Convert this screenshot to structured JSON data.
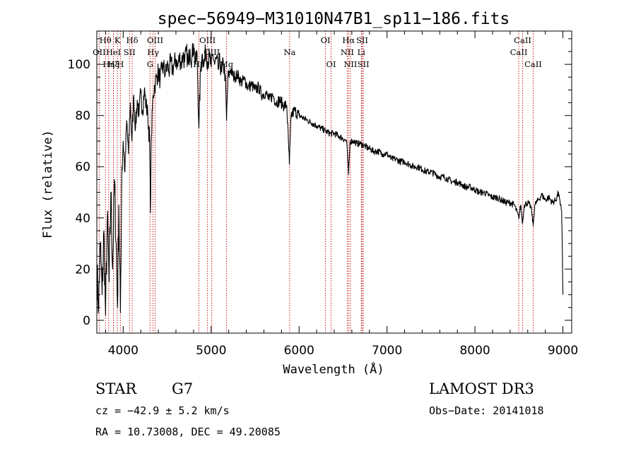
{
  "chart_data": {
    "type": "line",
    "title": "spec−56949−M31010N47B1_sp11−186.fits",
    "xlabel": "Wavelength (Å)",
    "ylabel": "Flux (relative)",
    "xlim": [
      3700,
      9100
    ],
    "ylim": [
      -5,
      113
    ],
    "xticks": [
      4000,
      5000,
      6000,
      7000,
      8000,
      9000
    ],
    "yticks": [
      0,
      20,
      40,
      60,
      80,
      100
    ],
    "x_minor_step": 200,
    "y_minor_step": 5,
    "spectrum_anchors": [
      [
        3700,
        20
      ],
      [
        3720,
        5
      ],
      [
        3740,
        30
      ],
      [
        3760,
        10
      ],
      [
        3780,
        35
      ],
      [
        3800,
        2
      ],
      [
        3820,
        40
      ],
      [
        3840,
        15
      ],
      [
        3860,
        50
      ],
      [
        3880,
        20
      ],
      [
        3900,
        55
      ],
      [
        3920,
        30
      ],
      [
        3935,
        5
      ],
      [
        3950,
        45
      ],
      [
        3968,
        3
      ],
      [
        3985,
        60
      ],
      [
        4000,
        70
      ],
      [
        4020,
        58
      ],
      [
        4040,
        78
      ],
      [
        4060,
        65
      ],
      [
        4080,
        85
      ],
      [
        4100,
        70
      ],
      [
        4120,
        88
      ],
      [
        4140,
        75
      ],
      [
        4160,
        86
      ],
      [
        4180,
        80
      ],
      [
        4200,
        89
      ],
      [
        4220,
        82
      ],
      [
        4240,
        90
      ],
      [
        4260,
        84
      ],
      [
        4280,
        80
      ],
      [
        4300,
        70
      ],
      [
        4310,
        42
      ],
      [
        4320,
        72
      ],
      [
        4340,
        88
      ],
      [
        4360,
        92
      ],
      [
        4380,
        95
      ],
      [
        4400,
        97
      ],
      [
        4420,
        94
      ],
      [
        4440,
        98
      ],
      [
        4460,
        99
      ],
      [
        4480,
        96
      ],
      [
        4500,
        100
      ],
      [
        4520,
        97
      ],
      [
        4540,
        101
      ],
      [
        4560,
        98
      ],
      [
        4580,
        100
      ],
      [
        4600,
        102
      ],
      [
        4620,
        99
      ],
      [
        4640,
        103
      ],
      [
        4660,
        100
      ],
      [
        4680,
        104
      ],
      [
        4700,
        101
      ],
      [
        4720,
        105
      ],
      [
        4740,
        100
      ],
      [
        4760,
        106
      ],
      [
        4780,
        102
      ],
      [
        4800,
        108
      ],
      [
        4820,
        100
      ],
      [
        4840,
        104
      ],
      [
        4861,
        75
      ],
      [
        4880,
        98
      ],
      [
        4900,
        104
      ],
      [
        4920,
        100
      ],
      [
        4940,
        106
      ],
      [
        4960,
        101
      ],
      [
        4980,
        103
      ],
      [
        5000,
        99
      ],
      [
        5020,
        104
      ],
      [
        5040,
        100
      ],
      [
        5060,
        102
      ],
      [
        5080,
        98
      ],
      [
        5100,
        101
      ],
      [
        5120,
        97
      ],
      [
        5140,
        100
      ],
      [
        5160,
        96
      ],
      [
        5175,
        78
      ],
      [
        5190,
        94
      ],
      [
        5220,
        98
      ],
      [
        5260,
        95
      ],
      [
        5300,
        96
      ],
      [
        5340,
        93
      ],
      [
        5380,
        94
      ],
      [
        5420,
        91
      ],
      [
        5460,
        92
      ],
      [
        5500,
        90
      ],
      [
        5540,
        91
      ],
      [
        5580,
        88
      ],
      [
        5620,
        89
      ],
      [
        5660,
        86
      ],
      [
        5700,
        88
      ],
      [
        5740,
        85
      ],
      [
        5780,
        86
      ],
      [
        5820,
        84
      ],
      [
        5860,
        84
      ],
      [
        5890,
        61
      ],
      [
        5910,
        80
      ],
      [
        5950,
        82
      ],
      [
        6000,
        80
      ],
      [
        6050,
        79
      ],
      [
        6100,
        78
      ],
      [
        6150,
        77
      ],
      [
        6200,
        76
      ],
      [
        6250,
        75
      ],
      [
        6300,
        74
      ],
      [
        6350,
        73
      ],
      [
        6400,
        73
      ],
      [
        6450,
        72
      ],
      [
        6500,
        71
      ],
      [
        6540,
        70
      ],
      [
        6563,
        57
      ],
      [
        6580,
        70
      ],
      [
        6620,
        70
      ],
      [
        6660,
        69
      ],
      [
        6700,
        69
      ],
      [
        6750,
        68
      ],
      [
        6800,
        67
      ],
      [
        6850,
        66
      ],
      [
        6900,
        66
      ],
      [
        6950,
        65
      ],
      [
        7000,
        65
      ],
      [
        7050,
        63
      ],
      [
        7100,
        63
      ],
      [
        7150,
        62
      ],
      [
        7200,
        62
      ],
      [
        7250,
        61
      ],
      [
        7300,
        60
      ],
      [
        7350,
        60
      ],
      [
        7400,
        59
      ],
      [
        7450,
        58
      ],
      [
        7500,
        58
      ],
      [
        7550,
        57
      ],
      [
        7600,
        56
      ],
      [
        7650,
        56
      ],
      [
        7700,
        55
      ],
      [
        7750,
        54
      ],
      [
        7800,
        54
      ],
      [
        7850,
        53
      ],
      [
        7900,
        52
      ],
      [
        7950,
        52
      ],
      [
        8000,
        51
      ],
      [
        8050,
        50
      ],
      [
        8100,
        50
      ],
      [
        8150,
        49
      ],
      [
        8200,
        48
      ],
      [
        8250,
        48
      ],
      [
        8300,
        47
      ],
      [
        8350,
        46
      ],
      [
        8400,
        46
      ],
      [
        8450,
        45
      ],
      [
        8498,
        40
      ],
      [
        8520,
        45
      ],
      [
        8542,
        38
      ],
      [
        8560,
        45
      ],
      [
        8600,
        46
      ],
      [
        8640,
        44
      ],
      [
        8662,
        37
      ],
      [
        8680,
        45
      ],
      [
        8720,
        47
      ],
      [
        8760,
        49
      ],
      [
        8800,
        47
      ],
      [
        8840,
        48
      ],
      [
        8880,
        46
      ],
      [
        8920,
        47
      ],
      [
        8950,
        50
      ],
      [
        8970,
        45
      ],
      [
        8985,
        43
      ],
      [
        8990,
        35
      ],
      [
        8995,
        25
      ],
      [
        9000,
        10
      ]
    ],
    "lines": [
      {
        "label": "Hθ",
        "wavelength": 3798,
        "row": 0
      },
      {
        "label": "OII",
        "wavelength": 3727,
        "row": 1
      },
      {
        "label": "Hη",
        "wavelength": 3835,
        "row": 2
      },
      {
        "label": "HeI",
        "wavelength": 3889,
        "row": 1
      },
      {
        "label": "Hξ",
        "wavelength": 3889,
        "row": 2
      },
      {
        "label": "K",
        "wavelength": 3934,
        "row": 0
      },
      {
        "label": "H",
        "wavelength": 3968,
        "row": 2
      },
      {
        "label": "SII",
        "wavelength": 4072,
        "row": 1
      },
      {
        "label": "Hδ",
        "wavelength": 4102,
        "row": 0
      },
      {
        "label": "OIII",
        "wavelength": 4363,
        "row": 0
      },
      {
        "label": "Hγ",
        "wavelength": 4340,
        "row": 1
      },
      {
        "label": "G",
        "wavelength": 4305,
        "row": 2
      },
      {
        "label": "OIII",
        "wavelength": 4959,
        "row": 0
      },
      {
        "label": "OIII",
        "wavelength": 5007,
        "row": 1
      },
      {
        "label": "Hβ",
        "wavelength": 4861,
        "row": 2
      },
      {
        "label": "Mg",
        "wavelength": 5175,
        "row": 2
      },
      {
        "label": "Na",
        "wavelength": 5893,
        "row": 1
      },
      {
        "label": "OI",
        "wavelength": 6300,
        "row": 0
      },
      {
        "label": "OI",
        "wavelength": 6364,
        "row": 2
      },
      {
        "label": "Hα",
        "wavelength": 6563,
        "row": 0
      },
      {
        "label": "NII",
        "wavelength": 6548,
        "row": 1
      },
      {
        "label": "NII",
        "wavelength": 6584,
        "row": 2
      },
      {
        "label": "SII",
        "wavelength": 6717,
        "row": 0
      },
      {
        "label": "Li",
        "wavelength": 6708,
        "row": 1
      },
      {
        "label": "SII",
        "wavelength": 6731,
        "row": 2
      },
      {
        "label": "CaII",
        "wavelength": 8542,
        "row": 0
      },
      {
        "label": "CaII",
        "wavelength": 8498,
        "row": 1
      },
      {
        "label": "CaII",
        "wavelength": 8662,
        "row": 2
      }
    ],
    "line_color": "#c00000"
  },
  "info": {
    "class_label": "STAR",
    "subclass": "G7",
    "survey": "LAMOST DR3",
    "cz": "cz = −42.9 ± 5.2 km/s",
    "obs_date": "Obs−Date: 20141018",
    "coords": "RA =  10.73008, DEC =  49.20085"
  }
}
